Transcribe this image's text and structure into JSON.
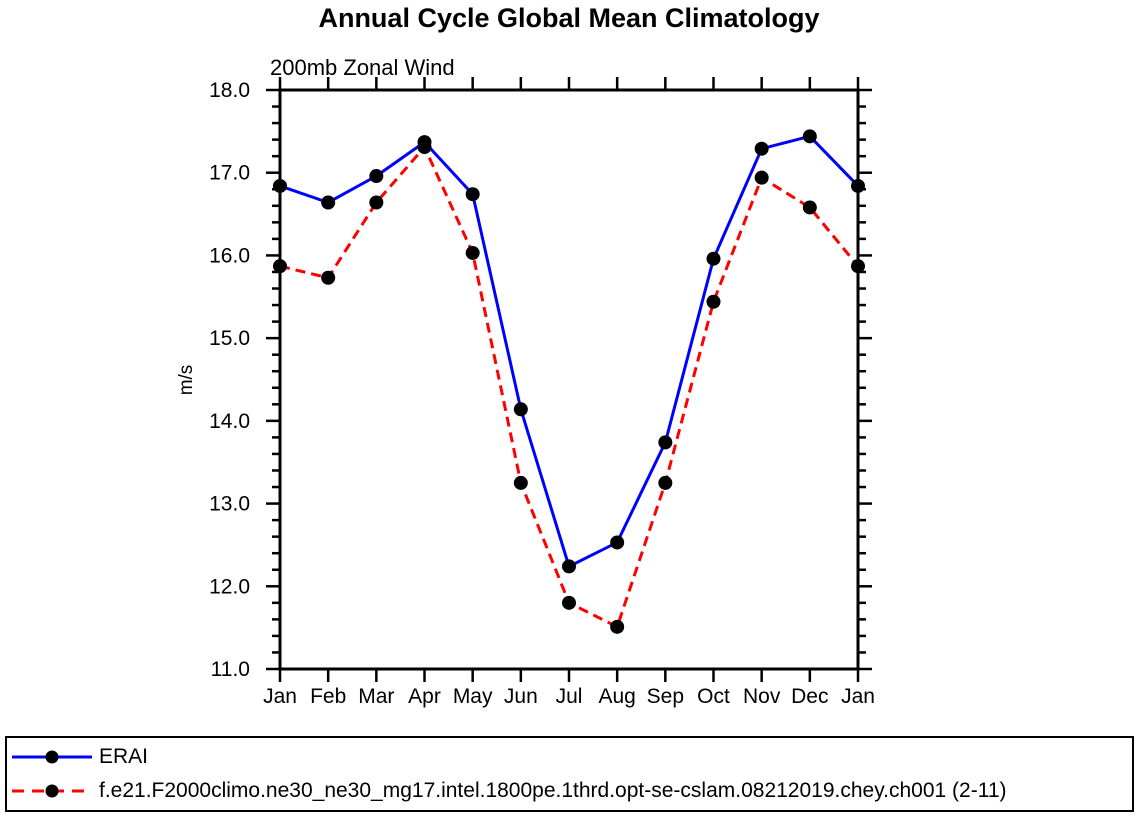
{
  "title": "Annual Cycle Global Mean Climatology",
  "subtitle": "200mb Zonal Wind",
  "chart_data": {
    "type": "line",
    "x_categories": [
      "Jan",
      "Feb",
      "Mar",
      "Apr",
      "May",
      "Jun",
      "Jul",
      "Aug",
      "Sep",
      "Oct",
      "Nov",
      "Dec",
      "Jan"
    ],
    "ylabel": "m/s",
    "ylim": [
      11.0,
      18.0
    ],
    "y_major_tick_step": 1.0,
    "y_minor_tick_step": 0.2,
    "y_tick_labels": [
      "18.0",
      "17.0",
      "16.0",
      "15.0",
      "14.0",
      "13.0",
      "12.0",
      "11.0"
    ],
    "grid": false,
    "legend_position": "bottom-full-width-box",
    "axis_color": "#000000",
    "series": [
      {
        "name": "ERAI",
        "color": "#0000ff",
        "line_style": "solid",
        "marker": "filled-circle",
        "marker_color": "#000000",
        "values": [
          16.84,
          16.64,
          16.96,
          17.37,
          16.74,
          14.14,
          12.24,
          12.53,
          13.74,
          15.96,
          17.29,
          17.44,
          16.84
        ]
      },
      {
        "name": "f.e21.F2000climo.ne30_ne30_mg17.intel.1800pe.1thrd.opt-se-cslam.08212019.chey.ch001 (2-11)",
        "color": "#ff0000",
        "line_style": "dashed",
        "marker": "filled-circle",
        "marker_color": "#000000",
        "values": [
          15.87,
          15.73,
          16.64,
          17.31,
          16.03,
          13.25,
          11.8,
          11.51,
          13.25,
          15.44,
          16.94,
          16.58,
          15.87
        ]
      }
    ]
  }
}
